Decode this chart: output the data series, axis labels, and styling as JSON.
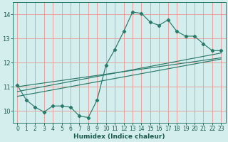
{
  "xlabel": "Humidex (Indice chaleur)",
  "bg_color": "#d4eeee",
  "grid_color": "#e8a0a0",
  "line_color": "#2a7a6a",
  "xlim": [
    -0.5,
    23.5
  ],
  "ylim": [
    9.5,
    14.5
  ],
  "yticks": [
    10,
    11,
    12,
    13,
    14
  ],
  "xticks": [
    0,
    1,
    2,
    3,
    4,
    5,
    6,
    7,
    8,
    9,
    10,
    11,
    12,
    13,
    14,
    15,
    16,
    17,
    18,
    19,
    20,
    21,
    22,
    23
  ],
  "main_line_x": [
    0,
    1,
    2,
    3,
    4,
    5,
    6,
    7,
    8,
    9,
    10,
    11,
    12,
    13,
    14,
    15,
    16,
    17,
    18,
    19,
    20,
    21,
    22,
    23
  ],
  "main_line_y": [
    11.05,
    10.45,
    10.15,
    9.95,
    10.2,
    10.2,
    10.15,
    9.78,
    9.72,
    10.45,
    11.9,
    12.55,
    13.3,
    14.1,
    14.05,
    13.68,
    13.55,
    13.78,
    13.3,
    13.1,
    13.1,
    12.78,
    12.5,
    12.5
  ],
  "reg_line1_x": [
    0,
    23
  ],
  "reg_line1_y": [
    11.0,
    12.2
  ],
  "reg_line2_x": [
    0,
    23
  ],
  "reg_line2_y": [
    10.8,
    12.4
  ],
  "reg_line3_x": [
    0,
    23
  ],
  "reg_line3_y": [
    10.6,
    12.15
  ]
}
